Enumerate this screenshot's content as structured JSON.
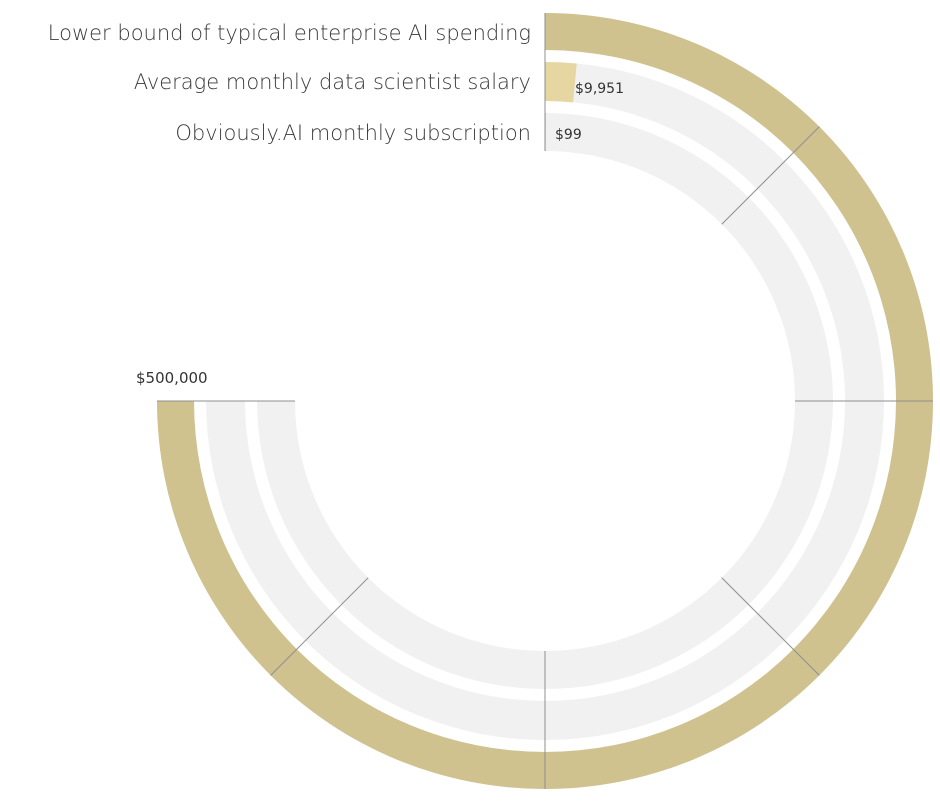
{
  "chart_data": {
    "type": "radial-bar",
    "max_label": "$500,000",
    "max_value": 500000,
    "arc_degrees": 270,
    "series": [
      {
        "name": "Lower bound of typical enterprise AI spending",
        "value": 500000,
        "value_label": "",
        "color": "#cfc28f"
      },
      {
        "name": "Average monthly data scientist salary",
        "value": 9951,
        "value_label": "$9,951",
        "color": "#e5d6a2"
      },
      {
        "name": "Obviously.AI monthly subscription",
        "value": 99,
        "value_label": "$99",
        "color": "#cfc28f"
      }
    ],
    "track_color": "#f1f1f1",
    "gridline_color": "#8f8f8f"
  }
}
